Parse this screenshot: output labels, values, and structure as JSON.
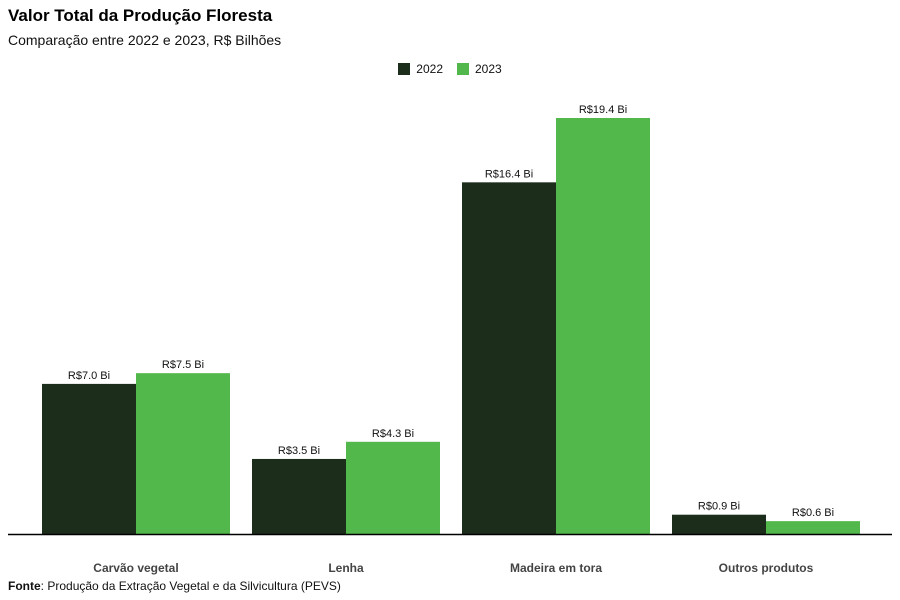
{
  "chart_data": {
    "type": "bar",
    "title": "Valor Total da Produção Floresta",
    "subtitle": "Comparação entre 2022 e 2023, R$ Bilhões",
    "categories": [
      "Carvão vegetal",
      "Lenha",
      "Madeira em tora",
      "Outros produtos"
    ],
    "series": [
      {
        "name": "2022",
        "color": "#1c2d1c",
        "values": [
          7.0,
          3.5,
          16.4,
          0.9
        ],
        "labels": [
          "R$7.0 Bi",
          "R$3.5 Bi",
          "R$16.4 Bi",
          "R$0.9 Bi"
        ]
      },
      {
        "name": "2023",
        "color": "#53b84b",
        "values": [
          7.5,
          4.3,
          19.4,
          0.6
        ],
        "labels": [
          "R$7.5 Bi",
          "R$4.3 Bi",
          "R$19.4 Bi",
          "R$0.6 Bi"
        ]
      }
    ],
    "ylim": [
      0,
      20
    ],
    "grid": false,
    "legend_position": "top-center",
    "xlabel": "",
    "ylabel": ""
  },
  "source": {
    "label": "Fonte",
    "text": ": Produção da Extração Vegetal e da Silvicultura (PEVS)"
  }
}
